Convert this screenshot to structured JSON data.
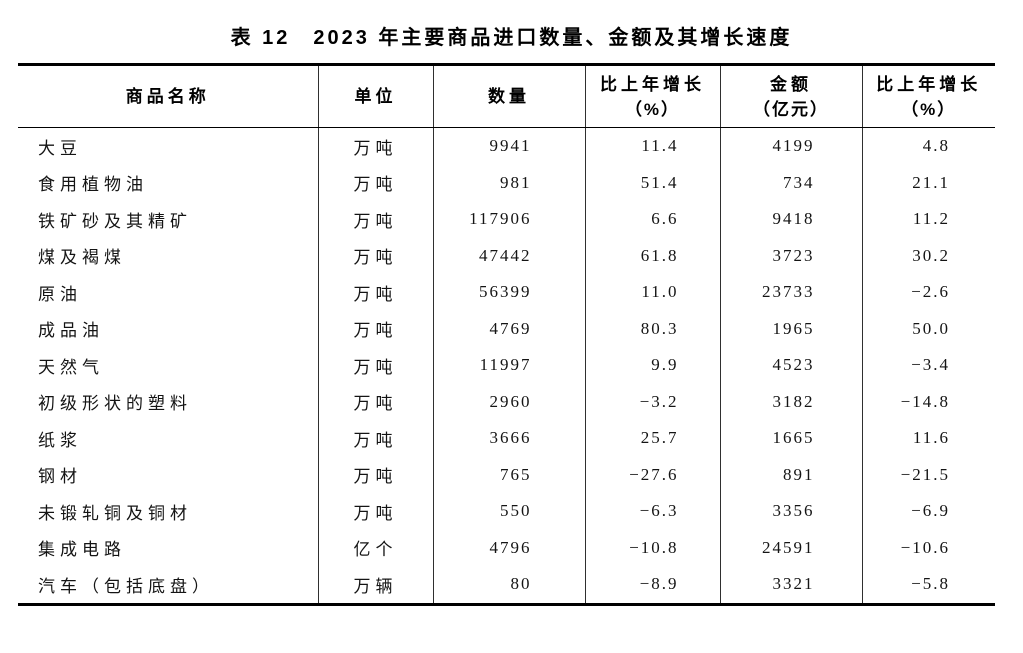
{
  "document": {
    "title": "表 12　2023 年主要商品进口数量、金额及其增长速度"
  },
  "colors": {
    "background": "#ffffff",
    "text": "#141414",
    "border_heavy": "#000000",
    "border_light": "#2f2f2f"
  },
  "table": {
    "columns": [
      {
        "key": "name",
        "label": "商品名称",
        "sub": ""
      },
      {
        "key": "unit",
        "label": "单位",
        "sub": ""
      },
      {
        "key": "quantity",
        "label": "数量",
        "sub": ""
      },
      {
        "key": "quantity_growth",
        "label": "比上年增长",
        "sub": "（%）"
      },
      {
        "key": "amount",
        "label": "金额",
        "sub": "（亿元）"
      },
      {
        "key": "amount_growth",
        "label": "比上年增长",
        "sub": "（%）"
      }
    ],
    "rows": [
      {
        "name": "大豆",
        "unit": "万吨",
        "quantity": "9941",
        "quantity_growth": "11.4",
        "amount": "4199",
        "amount_growth": "4.8"
      },
      {
        "name": "食用植物油",
        "unit": "万吨",
        "quantity": "981",
        "quantity_growth": "51.4",
        "amount": "734",
        "amount_growth": "21.1"
      },
      {
        "name": "铁矿砂及其精矿",
        "unit": "万吨",
        "quantity": "117906",
        "quantity_growth": "6.6",
        "amount": "9418",
        "amount_growth": "11.2"
      },
      {
        "name": "煤及褐煤",
        "unit": "万吨",
        "quantity": "47442",
        "quantity_growth": "61.8",
        "amount": "3723",
        "amount_growth": "30.2"
      },
      {
        "name": "原油",
        "unit": "万吨",
        "quantity": "56399",
        "quantity_growth": "11.0",
        "amount": "23733",
        "amount_growth": "−2.6"
      },
      {
        "name": "成品油",
        "unit": "万吨",
        "quantity": "4769",
        "quantity_growth": "80.3",
        "amount": "1965",
        "amount_growth": "50.0"
      },
      {
        "name": "天然气",
        "unit": "万吨",
        "quantity": "11997",
        "quantity_growth": "9.9",
        "amount": "4523",
        "amount_growth": "−3.4"
      },
      {
        "name": "初级形状的塑料",
        "unit": "万吨",
        "quantity": "2960",
        "quantity_growth": "−3.2",
        "amount": "3182",
        "amount_growth": "−14.8"
      },
      {
        "name": "纸浆",
        "unit": "万吨",
        "quantity": "3666",
        "quantity_growth": "25.7",
        "amount": "1665",
        "amount_growth": "11.6"
      },
      {
        "name": "钢材",
        "unit": "万吨",
        "quantity": "765",
        "quantity_growth": "−27.6",
        "amount": "891",
        "amount_growth": "−21.5"
      },
      {
        "name": "未锻轧铜及铜材",
        "unit": "万吨",
        "quantity": "550",
        "quantity_growth": "−6.3",
        "amount": "3356",
        "amount_growth": "−6.9"
      },
      {
        "name": "集成电路",
        "unit": "亿个",
        "quantity": "4796",
        "quantity_growth": "−10.8",
        "amount": "24591",
        "amount_growth": "−10.6"
      },
      {
        "name": "汽车（包括底盘）",
        "unit": "万辆",
        "quantity": "80",
        "quantity_growth": "−8.9",
        "amount": "3321",
        "amount_growth": "−5.8"
      }
    ]
  },
  "chart_data": {
    "type": "table",
    "title": "表 12　2023 年主要商品进口数量、金额及其增长速度",
    "categories": [
      "大豆",
      "食用植物油",
      "铁矿砂及其精矿",
      "煤及褐煤",
      "原油",
      "成品油",
      "天然气",
      "初级形状的塑料",
      "纸浆",
      "钢材",
      "未锻轧铜及铜材",
      "集成电路",
      "汽车（包括底盘）"
    ],
    "units": [
      "万吨",
      "万吨",
      "万吨",
      "万吨",
      "万吨",
      "万吨",
      "万吨",
      "万吨",
      "万吨",
      "万吨",
      "万吨",
      "亿个",
      "万辆"
    ],
    "series": [
      {
        "name": "数量",
        "values": [
          9941,
          981,
          117906,
          47442,
          56399,
          4769,
          11997,
          2960,
          3666,
          765,
          550,
          4796,
          80
        ]
      },
      {
        "name": "数量比上年增长（%）",
        "values": [
          11.4,
          51.4,
          6.6,
          61.8,
          11.0,
          80.3,
          9.9,
          -3.2,
          25.7,
          -27.6,
          -6.3,
          -10.8,
          -8.9
        ]
      },
      {
        "name": "金额（亿元）",
        "values": [
          4199,
          734,
          9418,
          3723,
          23733,
          1965,
          4523,
          3182,
          1665,
          891,
          3356,
          24591,
          3321
        ]
      },
      {
        "name": "金额比上年增长（%）",
        "values": [
          4.8,
          21.1,
          11.2,
          30.2,
          -2.6,
          50.0,
          -3.4,
          -14.8,
          11.6,
          -21.5,
          -6.9,
          -10.6,
          -5.8
        ]
      }
    ]
  }
}
